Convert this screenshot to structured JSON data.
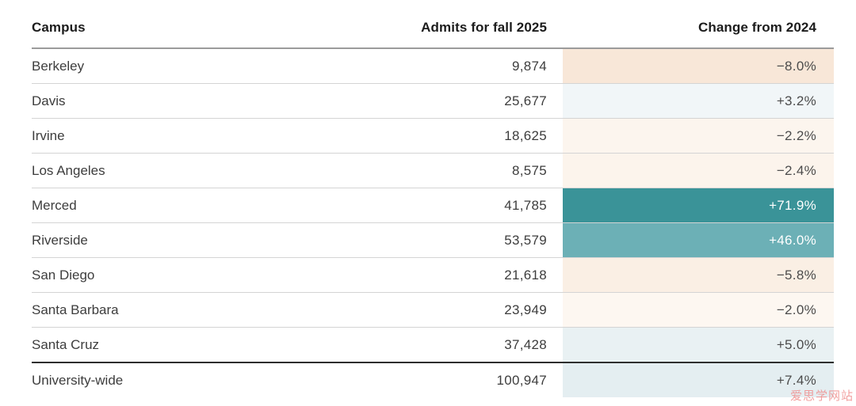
{
  "table": {
    "headers": {
      "campus": "Campus",
      "admits": "Admits for fall 2025",
      "change": "Change from 2024"
    },
    "rows": [
      {
        "campus": "Berkeley",
        "admits": "9,874",
        "change": "−8.0%",
        "cell_bg": "#f8e7d8",
        "cell_fg": "#4c4c4c",
        "summary": false
      },
      {
        "campus": "Davis",
        "admits": "25,677",
        "change": "+3.2%",
        "cell_bg": "#f1f6f8",
        "cell_fg": "#4c4c4c",
        "summary": false
      },
      {
        "campus": "Irvine",
        "admits": "18,625",
        "change": "−2.2%",
        "cell_bg": "#fcf5ee",
        "cell_fg": "#4c4c4c",
        "summary": false
      },
      {
        "campus": "Los Angeles",
        "admits": "8,575",
        "change": "−2.4%",
        "cell_bg": "#fcf4ec",
        "cell_fg": "#4c4c4c",
        "summary": false
      },
      {
        "campus": "Merced",
        "admits": "41,785",
        "change": "+71.9%",
        "cell_bg": "#3a9398",
        "cell_fg": "#ffffff",
        "summary": false
      },
      {
        "campus": "Riverside",
        "admits": "53,579",
        "change": "+46.0%",
        "cell_bg": "#6cb0b6",
        "cell_fg": "#ffffff",
        "summary": false
      },
      {
        "campus": "San Diego",
        "admits": "21,618",
        "change": "−5.8%",
        "cell_bg": "#faefe4",
        "cell_fg": "#4c4c4c",
        "summary": false
      },
      {
        "campus": "Santa Barbara",
        "admits": "23,949",
        "change": "−2.0%",
        "cell_bg": "#fdf7f1",
        "cell_fg": "#4c4c4c",
        "summary": false
      },
      {
        "campus": "Santa Cruz",
        "admits": "37,428",
        "change": "+5.0%",
        "cell_bg": "#e9f1f3",
        "cell_fg": "#4c4c4c",
        "summary": false
      },
      {
        "campus": "University-wide",
        "admits": "100,947",
        "change": "+7.4%",
        "cell_bg": "#e4eef1",
        "cell_fg": "#4c4c4c",
        "summary": true
      }
    ]
  },
  "watermark": {
    "text": "爱思学网站",
    "color": "#f0908f"
  },
  "colors": {
    "increase_strong": "#3a9398",
    "increase_medium": "#6cb0b6",
    "increase_light": "#e4eef1",
    "decrease_strong": "#f8e7d8",
    "decrease_light": "#fdf7f1",
    "header_rule": "#9b9b9b",
    "row_rule": "#d4d4d4",
    "summary_rule": "#2e2e2e"
  },
  "chart_data": {
    "type": "table",
    "columns": [
      "Campus",
      "Admits for fall 2025",
      "Change from 2024"
    ],
    "rows": [
      {
        "campus": "Berkeley",
        "admits_fall_2025": 9874,
        "change_from_2024_pct": -8.0
      },
      {
        "campus": "Davis",
        "admits_fall_2025": 25677,
        "change_from_2024_pct": 3.2
      },
      {
        "campus": "Irvine",
        "admits_fall_2025": 18625,
        "change_from_2024_pct": -2.2
      },
      {
        "campus": "Los Angeles",
        "admits_fall_2025": 8575,
        "change_from_2024_pct": -2.4
      },
      {
        "campus": "Merced",
        "admits_fall_2025": 41785,
        "change_from_2024_pct": 71.9
      },
      {
        "campus": "Riverside",
        "admits_fall_2025": 53579,
        "change_from_2024_pct": 46.0
      },
      {
        "campus": "San Diego",
        "admits_fall_2025": 21618,
        "change_from_2024_pct": -5.8
      },
      {
        "campus": "Santa Barbara",
        "admits_fall_2025": 23949,
        "change_from_2024_pct": -2.0
      },
      {
        "campus": "Santa Cruz",
        "admits_fall_2025": 37428,
        "change_from_2024_pct": 5.0
      },
      {
        "campus": "University-wide",
        "admits_fall_2025": 100947,
        "change_from_2024_pct": 7.4
      }
    ],
    "shading_rule": "Change column uses diverging fill: teal for increases, peach for decreases, intensity proportional to magnitude; white text on dark teal cells"
  }
}
